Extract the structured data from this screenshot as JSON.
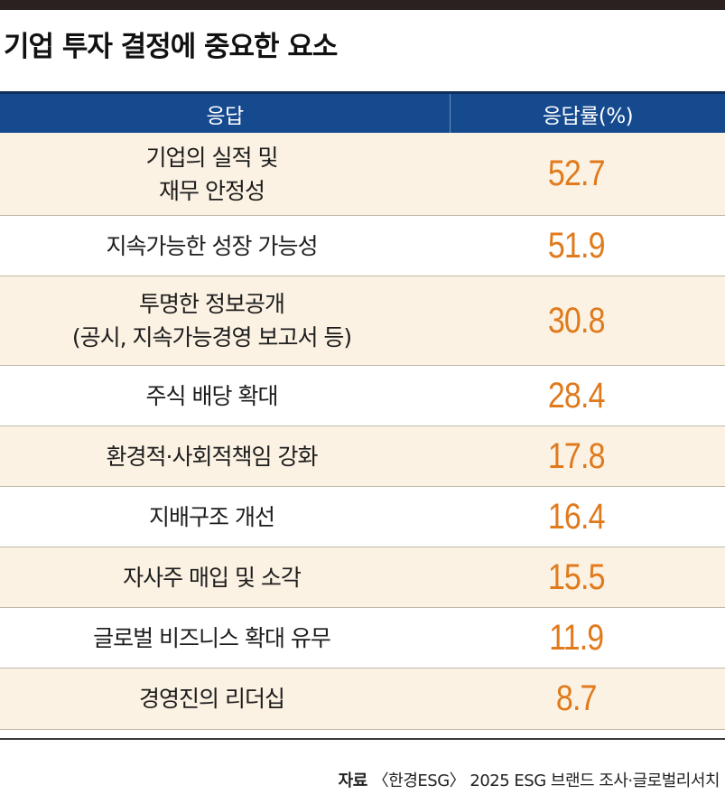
{
  "title": "기업 투자 결정에 중요한 요소",
  "colors": {
    "header_bg": "#164a8f",
    "row_shade": "#fbf2e3",
    "value_color": "#e07a1c",
    "top_bar": "#2b2120"
  },
  "chart_data": {
    "type": "table",
    "title": "기업 투자 결정에 중요한 요소",
    "columns": [
      "응답",
      "응답률(%)"
    ],
    "rows": [
      {
        "response": "기업의 실적 및\n재무 안정성",
        "rate": "52.7"
      },
      {
        "response": "지속가능한 성장 가능성",
        "rate": "51.9"
      },
      {
        "response": "투명한 정보공개\n(공시, 지속가능경영 보고서 등)",
        "rate": "30.8"
      },
      {
        "response": "주식 배당 확대",
        "rate": "28.4"
      },
      {
        "response": "환경적·사회적책임 강화",
        "rate": "17.8"
      },
      {
        "response": "지배구조 개선",
        "rate": "16.4"
      },
      {
        "response": "자사주 매입 및 소각",
        "rate": "15.5"
      },
      {
        "response": "글로벌 비즈니스 확대 유무",
        "rate": "11.9"
      },
      {
        "response": "경영진의 리더십",
        "rate": "8.7"
      }
    ]
  },
  "source": {
    "label": "자료",
    "text": "〈한경ESG〉 2025 ESG 브랜드 조사·글로벌리서치"
  }
}
